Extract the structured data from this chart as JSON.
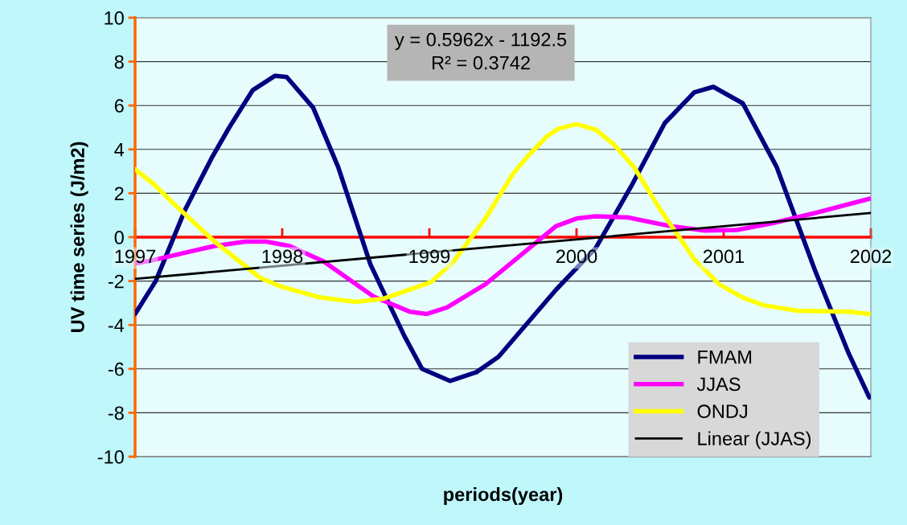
{
  "chart_data": {
    "type": "line",
    "xlabel": "periods(year)",
    "ylabel": "UV time series (J/m2)",
    "annotations": [
      "y = 0.5962x - 1192.5",
      "R² = 0.3742"
    ],
    "xlim": [
      1997,
      2002
    ],
    "xticks": [
      1997,
      1998,
      1999,
      2000,
      2001,
      2002
    ],
    "ylim": [
      -10,
      10
    ],
    "yticks": [
      -10,
      -8,
      -6,
      -4,
      -2,
      0,
      2,
      4,
      6,
      8,
      10
    ],
    "grid": "y",
    "legend": "bottom right",
    "marker": "none",
    "line_style": "solid",
    "series": [
      {
        "name": "FMAM",
        "color": "#000080",
        "x": [
          1997.0,
          1997.14,
          1997.34,
          1997.52,
          1997.64,
          1997.8,
          1997.95,
          1998.03,
          1998.21,
          1998.38,
          1998.6,
          1998.83,
          1998.95,
          1999.14,
          1999.32,
          1999.47,
          1999.86,
          2000.13,
          2000.37,
          2000.6,
          2000.8,
          2000.93,
          2001.13,
          2001.36,
          2001.62,
          2001.85,
          2001.99
        ],
        "values": [
          -3.5,
          -2.0,
          1.25,
          3.6,
          5.0,
          6.7,
          7.35,
          7.3,
          5.9,
          3.2,
          -1.25,
          -4.5,
          -6.0,
          -6.55,
          -6.15,
          -5.45,
          -2.4,
          -0.5,
          2.3,
          5.2,
          6.6,
          6.85,
          6.1,
          3.2,
          -1.5,
          -5.3,
          -7.3
        ]
      },
      {
        "name": "JJAS",
        "color": "#ff00ff",
        "x": [
          1997.0,
          1997.12,
          1997.54,
          1997.75,
          1997.89,
          1998.05,
          1998.28,
          1998.62,
          1998.87,
          1998.98,
          1999.12,
          1999.38,
          1999.47,
          1999.86,
          2000.0,
          2000.13,
          2000.35,
          2000.64,
          2000.87,
          2001.09,
          2001.34,
          2001.62,
          2001.99
        ],
        "values": [
          -1.2,
          -1.05,
          -0.4,
          -0.2,
          -0.2,
          -0.4,
          -1.1,
          -2.7,
          -3.4,
          -3.5,
          -3.2,
          -2.15,
          -1.65,
          0.5,
          0.85,
          0.95,
          0.9,
          0.5,
          0.3,
          0.33,
          0.65,
          1.1,
          1.75
        ]
      },
      {
        "name": "ONDJ",
        "color": "#ffff00",
        "x": [
          1997.0,
          1997.13,
          1997.25,
          1997.54,
          1997.85,
          1997.99,
          1998.26,
          1998.5,
          1998.69,
          1999.01,
          1999.16,
          1999.38,
          1999.57,
          1999.67,
          1999.8,
          1999.88,
          2000.0,
          2000.13,
          2000.25,
          2000.39,
          2000.56,
          2000.8,
          2000.97,
          2001.13,
          2001.27,
          2001.5,
          2001.85,
          2001.99
        ],
        "values": [
          3.1,
          2.4,
          1.6,
          -0.2,
          -1.85,
          -2.25,
          -2.75,
          -2.95,
          -2.8,
          -2.05,
          -1.15,
          0.85,
          2.9,
          3.7,
          4.6,
          4.95,
          5.15,
          4.9,
          4.25,
          3.2,
          1.35,
          -1.0,
          -2.15,
          -2.75,
          -3.1,
          -3.35,
          -3.4,
          -3.5
        ]
      },
      {
        "name": "Linear (JJAS)",
        "color": "#000000",
        "x": [
          1997,
          2002
        ],
        "values": [
          -1.9,
          1.1
        ]
      }
    ]
  }
}
